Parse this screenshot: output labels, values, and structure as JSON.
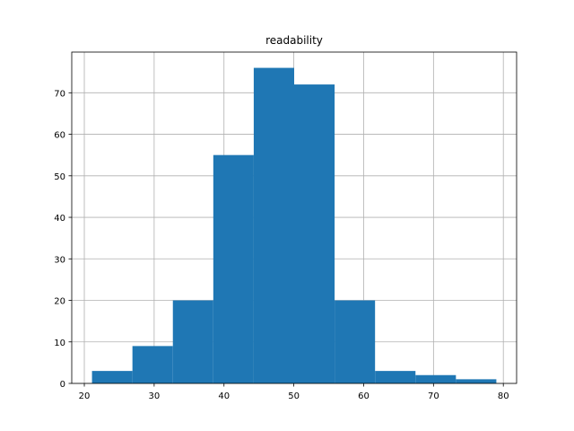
{
  "chart_data": {
    "type": "histogram",
    "title": "readability",
    "bins": [
      21.1,
      26.89,
      32.68,
      38.47,
      44.26,
      50.05,
      55.84,
      61.63,
      67.42,
      73.21,
      79.0
    ],
    "values": [
      3,
      9,
      20,
      55,
      76,
      72,
      20,
      3,
      2,
      1
    ],
    "color": "#1f77b4",
    "xlim": [
      18.2,
      81.9
    ],
    "xticks": [
      20,
      30,
      40,
      50,
      60,
      70,
      80
    ],
    "ylim": [
      0,
      79.8
    ],
    "yticks": [
      0,
      10,
      20,
      30,
      40,
      50,
      60,
      70
    ],
    "grid": true
  }
}
